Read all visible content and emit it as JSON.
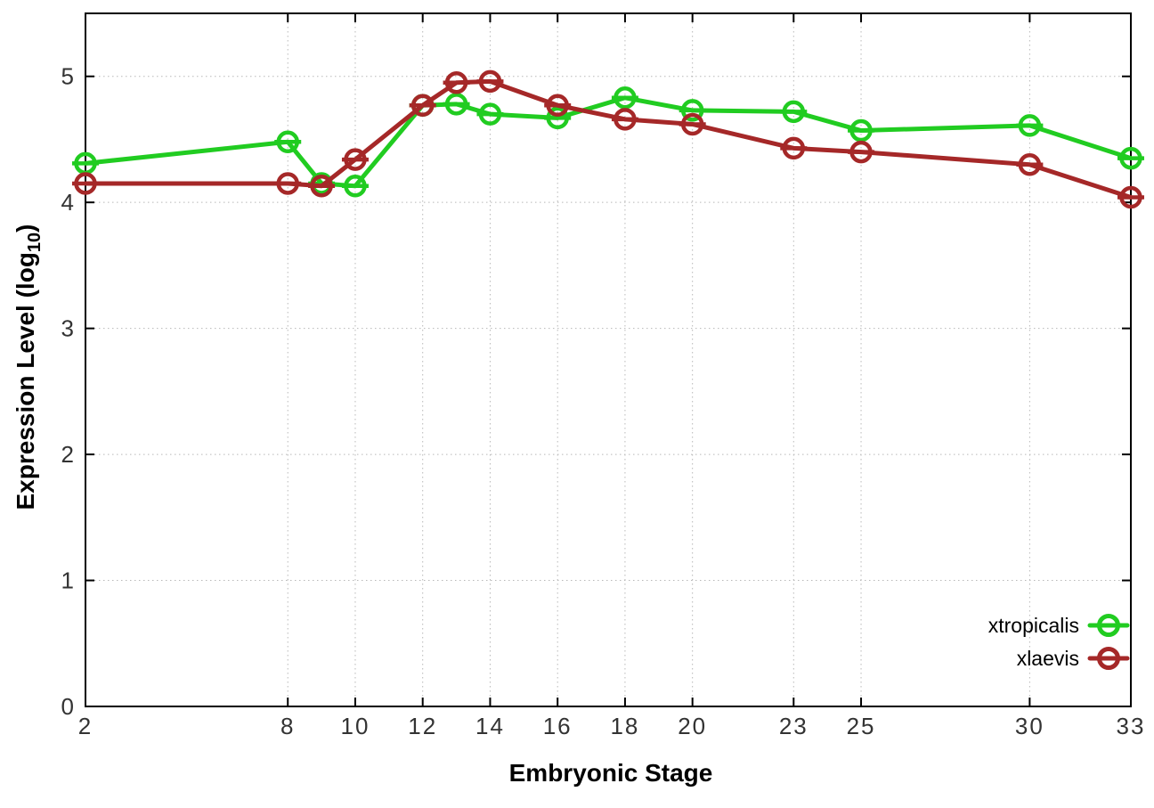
{
  "chart_data": {
    "type": "line",
    "title": "",
    "xlabel": "Embryonic Stage",
    "ylabel": "Expression Level (log10)",
    "ylabel_parts": {
      "main": "Expression Level (log",
      "sub": "10",
      "close": ")"
    },
    "x": [
      2,
      8,
      9,
      10,
      12,
      13,
      14,
      16,
      18,
      20,
      23,
      25,
      30,
      33
    ],
    "xticks": [
      2,
      8,
      10,
      12,
      14,
      16,
      18,
      20,
      23,
      25,
      30,
      33
    ],
    "yticks": [
      0,
      1,
      2,
      3,
      4,
      5
    ],
    "xlim": [
      2,
      33
    ],
    "ylim": [
      0,
      5.5
    ],
    "grid": true,
    "legend": {
      "position": "inside-bottom-right"
    },
    "series": [
      {
        "name": "xtropicalis",
        "color": "#21cc21",
        "marker": "open-circle-with-dash",
        "values": [
          4.31,
          4.48,
          4.15,
          4.13,
          4.77,
          4.78,
          4.7,
          4.67,
          4.83,
          4.73,
          4.72,
          4.57,
          4.61,
          4.35
        ]
      },
      {
        "name": "xlaevis",
        "color": "#a52828",
        "marker": "open-circle-with-dash",
        "values": [
          4.15,
          4.15,
          4.13,
          4.34,
          4.77,
          4.95,
          4.96,
          4.77,
          4.66,
          4.62,
          4.43,
          4.4,
          4.3,
          4.04
        ]
      }
    ],
    "axis_color": "#000000",
    "grid_color": "#b8b8b8",
    "tick_label_color": "#333333"
  }
}
